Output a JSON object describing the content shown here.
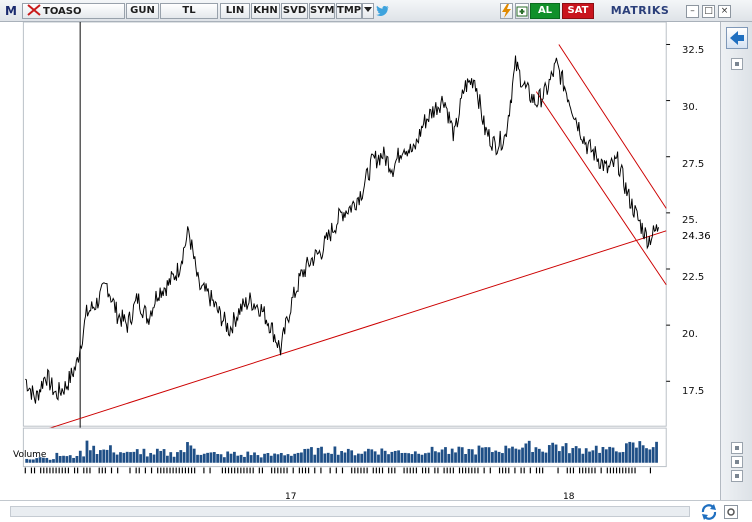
{
  "toolbar": {
    "m_label": "M",
    "symbol": "TOASO",
    "buttons": [
      {
        "label": "GUN"
      },
      {
        "label": "TL"
      },
      {
        "label": "LIN"
      },
      {
        "label": "KHN"
      },
      {
        "label": "SVD"
      },
      {
        "label": "SYM"
      },
      {
        "label": "TMP"
      }
    ],
    "buy_label": "AL",
    "sell_label": "SAT",
    "brand": "MATRIKS",
    "brand_highlight_color": "#e8a000",
    "window_controls": [
      "–",
      "□",
      "×"
    ]
  },
  "chart": {
    "price_axis_labels": [
      "32.5",
      "30.",
      "27.5",
      "25.",
      "22.5",
      "20.",
      "17.5"
    ],
    "current_price": "24.36",
    "volume_label": "Volume",
    "x_axis_labels": [
      "17",
      "18"
    ],
    "colors": {
      "price_line": "#000000",
      "trend_line": "#cc0000",
      "volume_bars": "#1f4f86"
    }
  },
  "chart_data": {
    "type": "line",
    "title": "",
    "xlabel": "",
    "ylabel": "",
    "ylim": [
      15.5,
      33.5
    ],
    "y_ticks": [
      17.5,
      20,
      22.5,
      25,
      27.5,
      30,
      32.5
    ],
    "x_tick_labels": [
      "17",
      "18"
    ],
    "current_value": 24.36,
    "series": [
      {
        "values": [
          17.6,
          16.7,
          17.8,
          16.9,
          17.3,
          18.2,
          20.5,
          21.0,
          21.8,
          20.5,
          20.0,
          21.2,
          20.3,
          21.5,
          21.8,
          22.5,
          24.2,
          21.7,
          21.3,
          20.5,
          19.8,
          20.7,
          21.1,
          20.8,
          20.0,
          18.9,
          20.9,
          22.2,
          22.9,
          23.3,
          24.2,
          25.0,
          25.3,
          26.0,
          27.3,
          27.6,
          27.0,
          28.0,
          27.7,
          29.0,
          29.6,
          30.1,
          28.4,
          30.6,
          31.0,
          28.7,
          28.0,
          28.4,
          31.6,
          30.5,
          29.9,
          30.4,
          31.6,
          30.4,
          29.1,
          28.0,
          27.5,
          26.9,
          27.3,
          25.8,
          24.7,
          23.8,
          24.36
        ]
      }
    ],
    "trend_lines": [
      {
        "from": [
          0,
          15.2
        ],
        "to": [
          1,
          24.2
        ]
      },
      {
        "from": [
          0.815,
          32.5
        ],
        "to": [
          1,
          25.2
        ]
      },
      {
        "from": [
          0.78,
          30.4
        ],
        "to": [
          1,
          21.8
        ]
      }
    ],
    "volume": [
      3,
      4,
      3,
      5,
      4,
      6,
      12,
      8,
      9,
      7,
      6,
      8,
      5,
      7,
      6,
      8,
      11,
      7,
      6,
      5,
      6,
      5,
      6,
      5,
      5,
      6,
      6,
      7,
      8,
      8,
      9,
      8,
      7,
      7,
      9,
      8,
      7,
      8,
      7,
      8,
      8,
      9,
      7,
      8,
      8,
      9,
      8,
      9,
      12,
      10,
      11,
      9,
      12,
      10,
      9,
      9,
      10,
      9,
      8,
      10,
      11,
      12,
      11
    ]
  }
}
